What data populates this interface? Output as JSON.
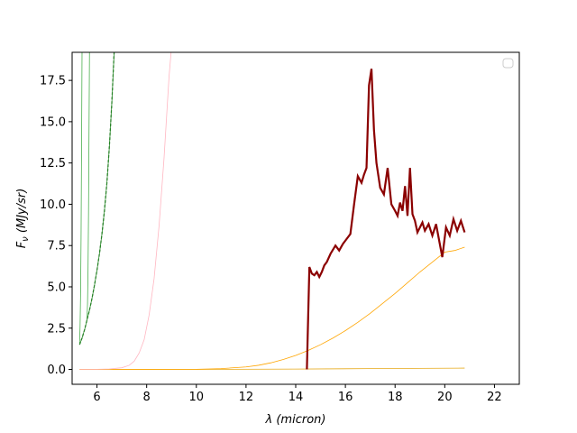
{
  "chart_data": {
    "type": "line",
    "xlabel": "λ (micron)",
    "ylabel": "F_ν (MJy/sr)",
    "xlim": [
      5.0,
      23.0
    ],
    "ylim": [
      -0.9,
      19.2
    ],
    "x_ticks": [
      6,
      8,
      10,
      12,
      14,
      16,
      18,
      20,
      22
    ],
    "y_ticks": [
      0.0,
      2.5,
      5.0,
      7.5,
      10.0,
      12.5,
      15.0,
      17.5
    ],
    "y_tick_labels": [
      "0.0",
      "2.5",
      "5.0",
      "7.5",
      "10.0",
      "12.5",
      "15.0",
      "17.5"
    ],
    "grid": false,
    "legend": "top-right (empty)",
    "series": [
      {
        "color": "#8b0000",
        "style": "markers",
        "x": [
          14.45,
          14.55,
          14.65,
          14.75,
          14.85,
          14.95,
          15.05,
          15.15,
          15.25,
          15.4,
          15.6,
          15.75,
          15.9,
          16.05,
          16.2,
          16.35,
          16.5,
          16.65,
          16.75,
          16.85,
          16.95,
          17.05,
          17.15,
          17.25,
          17.4,
          17.55,
          17.7,
          17.85,
          18.0,
          18.1,
          18.2,
          18.3,
          18.4,
          18.5,
          18.6,
          18.7,
          18.8,
          18.9,
          19.0,
          19.1,
          19.2,
          19.35,
          19.5,
          19.65,
          19.8,
          19.9,
          20.05,
          20.2,
          20.35,
          20.5,
          20.65,
          20.8
        ],
        "y": [
          0.0,
          6.2,
          5.8,
          5.7,
          5.9,
          5.6,
          5.9,
          6.3,
          6.5,
          7.0,
          7.5,
          7.2,
          7.6,
          7.9,
          8.2,
          10.0,
          11.7,
          11.3,
          11.8,
          12.2,
          17.2,
          18.2,
          14.5,
          12.5,
          11.0,
          10.6,
          12.2,
          10.0,
          9.6,
          9.3,
          10.1,
          9.6,
          11.1,
          9.3,
          12.2,
          9.4,
          9.0,
          8.3,
          8.6,
          8.9,
          8.4,
          8.8,
          8.1,
          8.8,
          7.6,
          6.8,
          8.6,
          8.1,
          9.1,
          8.4,
          9.0,
          8.3
        ]
      },
      {
        "color": "#000000",
        "style": "line",
        "x": [
          14.45,
          14.55,
          14.65,
          14.75,
          14.85,
          14.95,
          15.05,
          15.15,
          15.25,
          15.4,
          15.6,
          15.75,
          15.9,
          16.05,
          16.2,
          16.35,
          16.5,
          16.65,
          16.75,
          16.85,
          16.95,
          17.05,
          17.15,
          17.25,
          17.4,
          17.55,
          17.7,
          17.85,
          18.0,
          18.1,
          18.2,
          18.3,
          18.4,
          18.5,
          18.6,
          18.7,
          18.8,
          18.9,
          19.0,
          19.1,
          19.2,
          19.35,
          19.5,
          19.65,
          19.8,
          19.9,
          20.05,
          20.2,
          20.35,
          20.5,
          20.65,
          20.8
        ],
        "y": [
          0.0,
          6.2,
          5.8,
          5.7,
          5.9,
          5.6,
          5.9,
          6.3,
          6.5,
          7.0,
          7.5,
          7.2,
          7.6,
          7.9,
          8.2,
          10.0,
          11.7,
          11.3,
          11.8,
          12.2,
          17.2,
          18.2,
          14.5,
          12.5,
          11.0,
          10.6,
          12.2,
          10.0,
          9.6,
          9.3,
          10.1,
          9.6,
          11.1,
          9.3,
          12.2,
          9.4,
          9.0,
          8.3,
          8.6,
          8.9,
          8.4,
          8.8,
          8.1,
          8.8,
          7.6,
          6.8,
          8.6,
          8.1,
          9.1,
          8.4,
          9.0,
          8.3
        ]
      },
      {
        "color": "#2e8b2e",
        "style": "line",
        "x": [
          5.3,
          5.4,
          5.5,
          5.6,
          5.7,
          5.8,
          5.9,
          6.0,
          6.1,
          6.2,
          6.3,
          6.4,
          6.5,
          6.6,
          6.7
        ],
        "y": [
          1.5,
          1.9,
          2.4,
          3.0,
          3.6,
          4.3,
          5.1,
          6.0,
          7.0,
          8.2,
          9.6,
          11.3,
          13.5,
          16.2,
          19.5
        ]
      },
      {
        "color": "#006400",
        "style": "dashed",
        "x": [
          5.3,
          5.4,
          5.5,
          5.6,
          5.7,
          5.8,
          5.9,
          6.0,
          6.1,
          6.2,
          6.3,
          6.4,
          6.5,
          6.6,
          6.7
        ],
        "y": [
          1.5,
          1.9,
          2.4,
          3.0,
          3.6,
          4.3,
          5.1,
          6.0,
          7.0,
          8.2,
          9.6,
          11.3,
          13.5,
          16.2,
          19.5
        ]
      },
      {
        "color": "#4caf50",
        "style": "line",
        "x": [
          5.3,
          5.32,
          5.34,
          5.36,
          5.38,
          5.4
        ],
        "y": [
          1.6,
          2.6,
          4.5,
          8.0,
          13.5,
          19.5
        ]
      },
      {
        "color": "#4caf50",
        "style": "line",
        "x": [
          5.6,
          5.62,
          5.64,
          5.66,
          5.68,
          5.7
        ],
        "y": [
          3.0,
          4.0,
          6.0,
          9.5,
          14.5,
          19.5
        ]
      },
      {
        "color": "#ffb6c1",
        "style": "line",
        "x": [
          5.3,
          6.0,
          6.5,
          7.0,
          7.3,
          7.5,
          7.7,
          7.9,
          8.1,
          8.3,
          8.5,
          8.7,
          8.9,
          9.0
        ],
        "y": [
          0.0,
          0.01,
          0.03,
          0.1,
          0.25,
          0.5,
          1.0,
          1.8,
          3.3,
          5.5,
          8.7,
          12.8,
          17.7,
          19.5
        ]
      },
      {
        "color": "#ffa500",
        "style": "line",
        "x": [
          5.3,
          8.0,
          10.0,
          11.0,
          12.0,
          12.5,
          13.0,
          13.5,
          14.0,
          14.5,
          15.0,
          15.5,
          16.0,
          16.5,
          17.0,
          17.5,
          18.0,
          18.5,
          19.0,
          19.5,
          20.0,
          20.4,
          20.8
        ],
        "y": [
          0.0,
          0.0,
          0.01,
          0.05,
          0.15,
          0.25,
          0.4,
          0.6,
          0.85,
          1.15,
          1.5,
          1.9,
          2.35,
          2.85,
          3.4,
          4.0,
          4.6,
          5.25,
          5.9,
          6.5,
          7.1,
          7.2,
          7.4
        ]
      },
      {
        "color": "#e6a817",
        "style": "line",
        "x": [
          5.3,
          10.0,
          14.0,
          17.0,
          20.8
        ],
        "y": [
          0.0,
          0.0,
          0.02,
          0.05,
          0.08
        ]
      }
    ]
  }
}
